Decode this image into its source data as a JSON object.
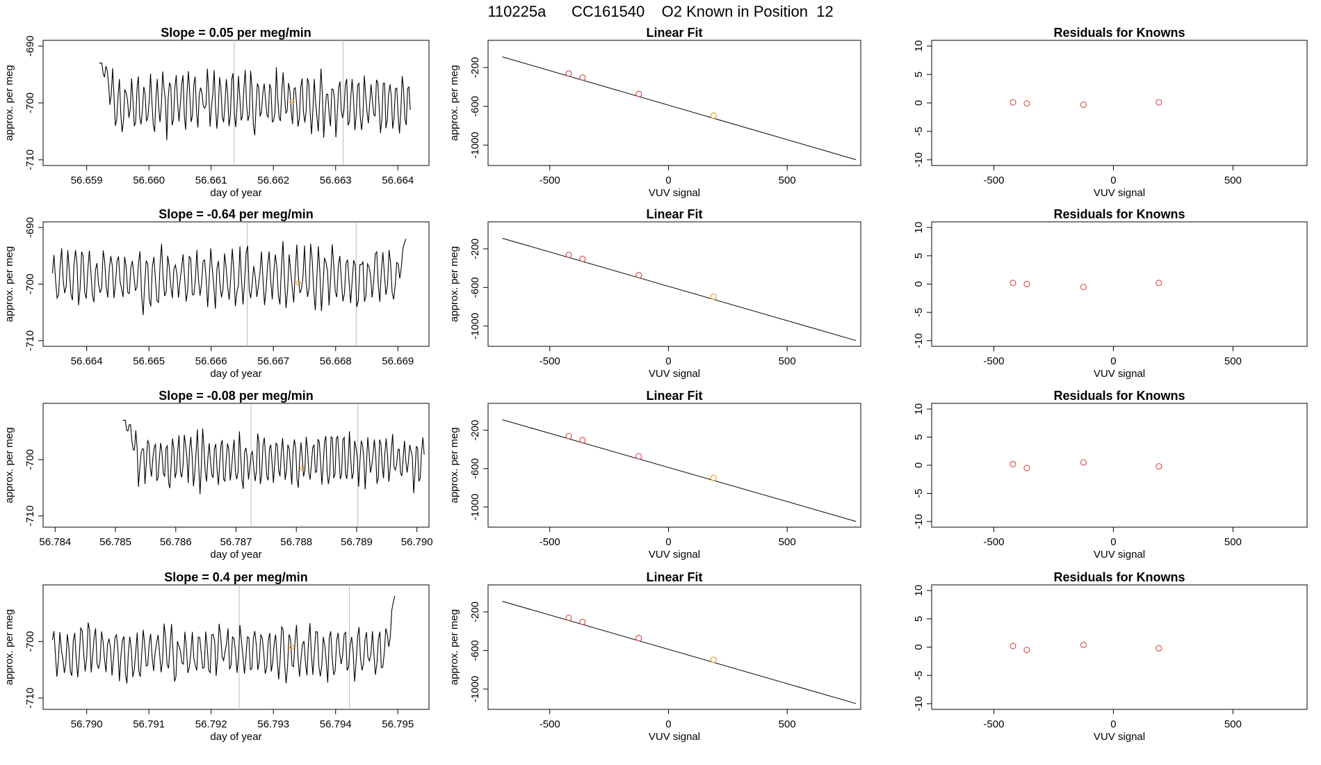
{
  "page_title": "110225a      CC161540    O2 Known in Position  12",
  "chart_data": [
    {
      "type": "line",
      "row": 0,
      "title": "Slope =  0.05  per meg/min",
      "xlabel": "day of year",
      "ylabel": "approx. per meg",
      "xlim": [
        56.6583,
        56.6645
      ],
      "ylim": [
        -711,
        -689
      ],
      "xticks": [
        "56.659",
        "56.660",
        "56.661",
        "56.662",
        "56.663",
        "56.664"
      ],
      "yticks": [
        "-710",
        "-700",
        "-690"
      ],
      "start": 56.6592,
      "end": 56.6642,
      "lead_from": -689,
      "settle": -700,
      "noise": 5,
      "vlines": [
        56.66137,
        56.66312
      ],
      "marker": [
        56.6623,
        -699.8
      ]
    },
    {
      "type": "scatter",
      "row": 0,
      "title": "Linear Fit",
      "xlabel": "VUV signal",
      "ylabel": "approx. per meg",
      "xlim": [
        -760,
        810
      ],
      "ylim": [
        -1210,
        80
      ],
      "xticks": [
        "-500",
        "0",
        "500"
      ],
      "yticks": [
        "-1000",
        "-600",
        "-200"
      ],
      "line": [
        [
          -700,
          -90
        ],
        [
          790,
          -1150
        ]
      ],
      "points": [
        [
          -420,
          -262,
          "red"
        ],
        [
          -362,
          -304,
          "red"
        ],
        [
          -125,
          -472,
          "red"
        ],
        [
          190,
          -696,
          "orange"
        ]
      ]
    },
    {
      "type": "scatter",
      "row": 0,
      "title": "Residuals for Knowns",
      "xlabel": "VUV signal",
      "ylabel": "",
      "xlim": [
        -760,
        810
      ],
      "ylim": [
        -11,
        11
      ],
      "xticks": [
        "-500",
        "0",
        "500"
      ],
      "yticks": [
        "-10",
        "-5",
        "0",
        "5",
        "10"
      ],
      "points": [
        [
          -420,
          0.1,
          "red"
        ],
        [
          -362,
          -0.1,
          "red"
        ],
        [
          -125,
          -0.3,
          "red"
        ],
        [
          190,
          0.1,
          "red"
        ]
      ]
    },
    {
      "type": "line",
      "row": 1,
      "title": "Slope =  -0.64  per meg/min",
      "xlabel": "day of year",
      "ylabel": "approx. per meg",
      "xlim": [
        56.6633,
        56.6695
      ],
      "ylim": [
        -711,
        -689
      ],
      "xticks": [
        "56.664",
        "56.665",
        "56.666",
        "56.667",
        "56.668",
        "56.669"
      ],
      "yticks": [
        "-710",
        "-700",
        "-690"
      ],
      "start": 56.66345,
      "end": 56.66913,
      "lead_from": null,
      "settle": -699,
      "noise": 5,
      "tail_to": -689,
      "vlines": [
        56.66658,
        56.66833
      ],
      "marker": [
        56.6674,
        -699.8
      ]
    },
    {
      "type": "scatter",
      "row": 1,
      "title": "Linear Fit",
      "xlabel": "VUV signal",
      "ylabel": "approx. per meg",
      "xlim": [
        -760,
        810
      ],
      "ylim": [
        -1210,
        80
      ],
      "xticks": [
        "-500",
        "0",
        "500"
      ],
      "yticks": [
        "-1000",
        "-600",
        "-200"
      ],
      "line": [
        [
          -700,
          -90
        ],
        [
          790,
          -1150
        ]
      ],
      "points": [
        [
          -420,
          -262,
          "red"
        ],
        [
          -362,
          -304,
          "red"
        ],
        [
          -125,
          -472,
          "red"
        ],
        [
          190,
          -696,
          "orange"
        ]
      ]
    },
    {
      "type": "scatter",
      "row": 1,
      "title": "Residuals for Knowns",
      "xlabel": "VUV signal",
      "ylabel": "",
      "xlim": [
        -760,
        810
      ],
      "ylim": [
        -11,
        11
      ],
      "xticks": [
        "-500",
        "0",
        "500"
      ],
      "yticks": [
        "-10",
        "-5",
        "0",
        "5",
        "10"
      ],
      "points": [
        [
          -420,
          0.2,
          "red"
        ],
        [
          -362,
          0.0,
          "red"
        ],
        [
          -125,
          -0.5,
          "red"
        ],
        [
          190,
          0.2,
          "red"
        ]
      ]
    },
    {
      "type": "line",
      "row": 2,
      "title": "Slope =  -0.08  per meg/min",
      "xlabel": "day of year",
      "ylabel": "approx. per meg",
      "xlim": [
        56.7838,
        56.7902
      ],
      "ylim": [
        -712,
        -690
      ],
      "xticks": [
        "56.784",
        "56.785",
        "56.786",
        "56.787",
        "56.788",
        "56.789",
        "56.790"
      ],
      "yticks": [
        "-710",
        "-700"
      ],
      "start": 56.78512,
      "end": 56.79012,
      "lead_from": -689,
      "settle": -700,
      "noise": 4.5,
      "vlines": [
        56.78725,
        56.78902
      ],
      "marker": [
        56.7881,
        -701.5
      ]
    },
    {
      "type": "scatter",
      "row": 2,
      "title": "Linear Fit",
      "xlabel": "VUV signal",
      "ylabel": "approx. per meg",
      "xlim": [
        -760,
        810
      ],
      "ylim": [
        -1210,
        80
      ],
      "xticks": [
        "-500",
        "0",
        "500"
      ],
      "yticks": [
        "-1000",
        "-600",
        "-200"
      ],
      "line": [
        [
          -700,
          -90
        ],
        [
          790,
          -1150
        ]
      ],
      "points": [
        [
          -420,
          -262,
          "red"
        ],
        [
          -362,
          -304,
          "red"
        ],
        [
          -125,
          -472,
          "red"
        ],
        [
          190,
          -696,
          "orange"
        ]
      ]
    },
    {
      "type": "scatter",
      "row": 2,
      "title": "Residuals for Knowns",
      "xlabel": "VUV signal",
      "ylabel": "",
      "xlim": [
        -760,
        810
      ],
      "ylim": [
        -11,
        11
      ],
      "xticks": [
        "-500",
        "0",
        "500"
      ],
      "yticks": [
        "-10",
        "-5",
        "0",
        "5",
        "10"
      ],
      "points": [
        [
          -420,
          0.2,
          "red"
        ],
        [
          -362,
          -0.5,
          "red"
        ],
        [
          -125,
          0.5,
          "red"
        ],
        [
          190,
          -0.2,
          "red"
        ]
      ]
    },
    {
      "type": "line",
      "row": 3,
      "title": "Slope =  0.4  per meg/min",
      "xlabel": "day of year",
      "ylabel": "approx. per meg",
      "xlim": [
        56.7893,
        56.7955
      ],
      "ylim": [
        -712,
        -690
      ],
      "xticks": [
        "56.790",
        "56.791",
        "56.792",
        "56.793",
        "56.794",
        "56.795"
      ],
      "yticks": [
        "-710",
        "-700"
      ],
      "start": 56.78945,
      "end": 56.79495,
      "lead_from": null,
      "settle": -702,
      "noise": 4.5,
      "tail_to": -689,
      "vlines": [
        56.79245,
        56.79422
      ],
      "marker": [
        56.7933,
        -701
      ]
    },
    {
      "type": "scatter",
      "row": 3,
      "title": "Linear Fit",
      "xlabel": "VUV signal",
      "ylabel": "approx. per meg",
      "xlim": [
        -760,
        810
      ],
      "ylim": [
        -1210,
        80
      ],
      "xticks": [
        "-500",
        "0",
        "500"
      ],
      "yticks": [
        "-1000",
        "-600",
        "-200"
      ],
      "line": [
        [
          -700,
          -90
        ],
        [
          790,
          -1150
        ]
      ],
      "points": [
        [
          -420,
          -262,
          "red"
        ],
        [
          -362,
          -304,
          "red"
        ],
        [
          -125,
          -472,
          "red"
        ],
        [
          190,
          -696,
          "orange"
        ]
      ]
    },
    {
      "type": "scatter",
      "row": 3,
      "title": "Residuals for Knowns",
      "xlabel": "VUV signal",
      "ylabel": "",
      "xlim": [
        -760,
        810
      ],
      "ylim": [
        -11,
        11
      ],
      "xticks": [
        "-500",
        "0",
        "500"
      ],
      "yticks": [
        "-10",
        "-5",
        "0",
        "5",
        "10"
      ],
      "points": [
        [
          -420,
          0.2,
          "red"
        ],
        [
          -362,
          -0.5,
          "red"
        ],
        [
          -125,
          0.4,
          "red"
        ],
        [
          190,
          -0.2,
          "red"
        ]
      ]
    }
  ],
  "colors": {
    "red": "#d9534f",
    "orange": "#f0a030",
    "vline": "#bbbbbb",
    "axis": "#000000"
  }
}
